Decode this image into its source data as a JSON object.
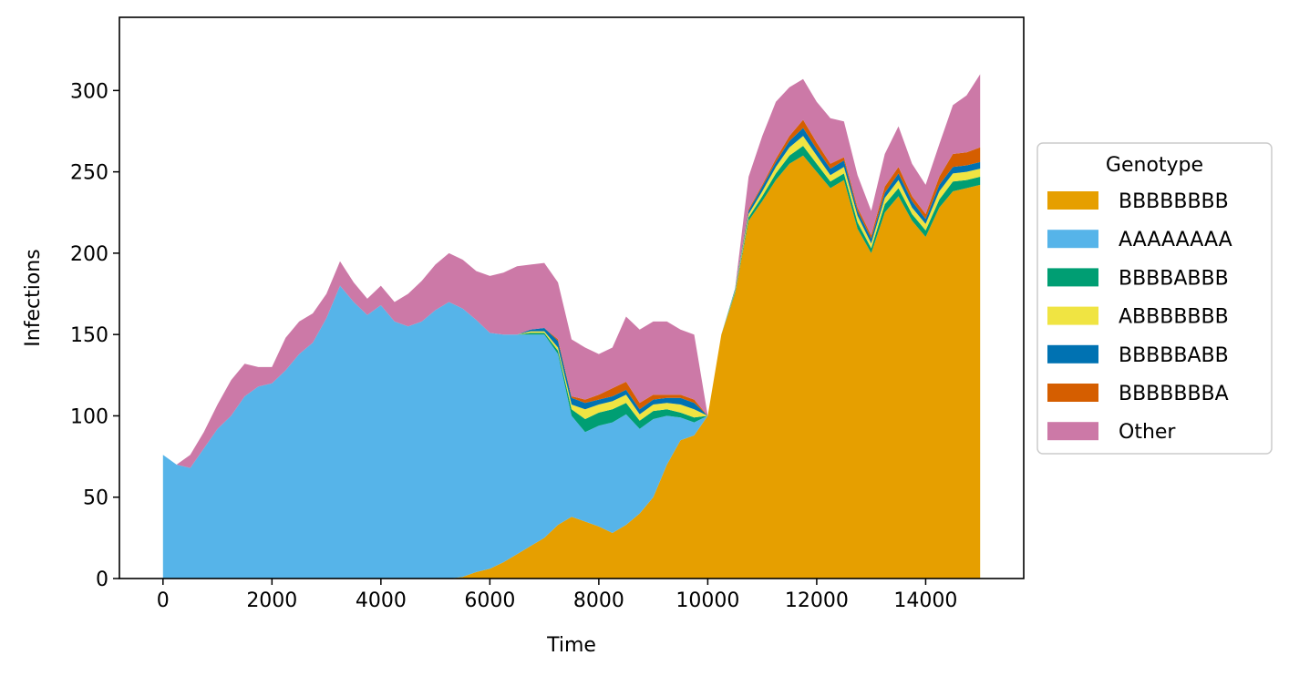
{
  "chart_data": {
    "type": "area",
    "stacked": true,
    "xlabel": "Time",
    "ylabel": "Infections",
    "xlim": [
      -800,
      15800
    ],
    "ylim": [
      0,
      345
    ],
    "xticks": [
      0,
      2000,
      4000,
      6000,
      8000,
      10000,
      12000,
      14000
    ],
    "yticks": [
      0,
      50,
      100,
      150,
      200,
      250,
      300
    ],
    "grid": false,
    "legend": {
      "title": "Genotype",
      "position": "right, outside plot area"
    },
    "x": [
      0,
      250,
      500,
      750,
      1000,
      1250,
      1500,
      1750,
      2000,
      2250,
      2500,
      2750,
      3000,
      3250,
      3500,
      3750,
      4000,
      4250,
      4500,
      4750,
      5000,
      5250,
      5500,
      5750,
      6000,
      6250,
      6500,
      6750,
      7000,
      7250,
      7500,
      7750,
      8000,
      8250,
      8500,
      8750,
      9000,
      9250,
      9500,
      9750,
      10000,
      10250,
      10500,
      10750,
      11000,
      11250,
      11500,
      11750,
      12000,
      12250,
      12500,
      12750,
      13000,
      13250,
      13500,
      13750,
      14000,
      14250,
      14500,
      14750,
      15000
    ],
    "series": [
      {
        "name": "BBBBBBBB",
        "color": "#E69F00",
        "values": [
          0,
          0,
          0,
          0,
          0,
          0,
          0,
          0,
          0,
          0,
          0,
          0,
          0,
          0,
          0,
          0,
          0,
          0,
          0,
          0,
          0,
          0,
          1,
          4,
          6,
          10,
          15,
          20,
          25,
          33,
          38,
          35,
          32,
          28,
          33,
          40,
          50,
          70,
          85,
          88,
          100,
          150,
          175,
          220,
          232,
          245,
          255,
          260,
          250,
          240,
          245,
          215,
          200,
          225,
          235,
          220,
          210,
          228,
          238,
          240,
          242
        ]
      },
      {
        "name": "AAAAAAAA",
        "color": "#56B4E9",
        "values": [
          76,
          70,
          68,
          80,
          92,
          100,
          112,
          118,
          120,
          128,
          138,
          145,
          160,
          180,
          170,
          162,
          168,
          158,
          155,
          158,
          165,
          170,
          165,
          155,
          145,
          140,
          135,
          130,
          125,
          105,
          62,
          55,
          62,
          68,
          68,
          52,
          48,
          30,
          14,
          8,
          0,
          0,
          0,
          0,
          0,
          0,
          0,
          0,
          0,
          0,
          0,
          0,
          0,
          0,
          0,
          0,
          0,
          0,
          0,
          0,
          0
        ]
      },
      {
        "name": "BBBBABBB",
        "color": "#009E73",
        "values": [
          0,
          0,
          0,
          0,
          0,
          0,
          0,
          0,
          0,
          0,
          0,
          0,
          0,
          0,
          0,
          0,
          0,
          0,
          0,
          0,
          0,
          0,
          0,
          0,
          0,
          0,
          0,
          1,
          1,
          2,
          4,
          8,
          8,
          8,
          7,
          5,
          5,
          4,
          3,
          3,
          0,
          0,
          1,
          2,
          3,
          4,
          5,
          6,
          5,
          4,
          4,
          4,
          3,
          5,
          5,
          4,
          4,
          5,
          6,
          5,
          5
        ]
      },
      {
        "name": "ABBBBBBB",
        "color": "#F0E442",
        "values": [
          0,
          0,
          0,
          0,
          0,
          0,
          0,
          0,
          0,
          0,
          0,
          0,
          0,
          0,
          0,
          0,
          0,
          0,
          0,
          0,
          0,
          0,
          0,
          0,
          0,
          0,
          0,
          1,
          1,
          2,
          3,
          6,
          5,
          5,
          5,
          4,
          4,
          4,
          5,
          5,
          0,
          0,
          1,
          2,
          3,
          4,
          5,
          6,
          5,
          4,
          4,
          4,
          3,
          4,
          5,
          4,
          4,
          5,
          5,
          5,
          5
        ]
      },
      {
        "name": "BBBBBABB",
        "color": "#0072B2",
        "values": [
          0,
          0,
          0,
          0,
          0,
          0,
          0,
          0,
          0,
          0,
          0,
          0,
          0,
          0,
          0,
          0,
          0,
          0,
          0,
          0,
          0,
          0,
          0,
          0,
          0,
          0,
          0,
          1,
          2,
          4,
          4,
          4,
          3,
          3,
          3,
          3,
          3,
          3,
          4,
          4,
          0,
          0,
          1,
          2,
          3,
          3,
          4,
          5,
          4,
          4,
          4,
          3,
          3,
          3,
          4,
          4,
          3,
          4,
          4,
          4,
          4
        ]
      },
      {
        "name": "BBBBBBBA",
        "color": "#D55E00",
        "values": [
          0,
          0,
          0,
          0,
          0,
          0,
          0,
          0,
          0,
          0,
          0,
          0,
          0,
          0,
          0,
          0,
          0,
          0,
          0,
          0,
          0,
          0,
          0,
          0,
          0,
          0,
          0,
          0,
          0,
          1,
          1,
          2,
          3,
          5,
          5,
          4,
          3,
          2,
          2,
          2,
          0,
          0,
          0,
          1,
          1,
          2,
          3,
          5,
          4,
          3,
          2,
          2,
          2,
          4,
          4,
          3,
          3,
          5,
          8,
          8,
          9
        ]
      },
      {
        "name": "Other",
        "color": "#CC79A7",
        "values": [
          0,
          0,
          8,
          10,
          15,
          22,
          20,
          12,
          10,
          20,
          20,
          18,
          15,
          15,
          12,
          10,
          12,
          12,
          20,
          25,
          28,
          30,
          30,
          30,
          35,
          38,
          42,
          40,
          40,
          35,
          35,
          32,
          25,
          25,
          40,
          45,
          45,
          45,
          40,
          40,
          0,
          0,
          0,
          20,
          30,
          35,
          30,
          25,
          25,
          28,
          22,
          20,
          15,
          20,
          25,
          20,
          18,
          20,
          30,
          35,
          45
        ]
      }
    ]
  }
}
